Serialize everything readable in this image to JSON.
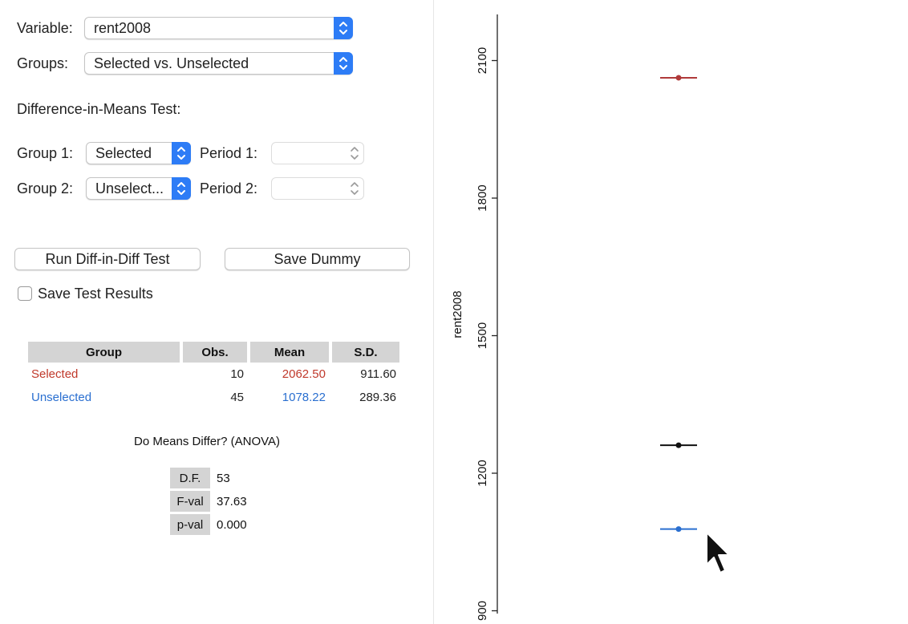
{
  "form": {
    "variable_label": "Variable:",
    "variable_value": "rent2008",
    "groups_label": "Groups:",
    "groups_value": "Selected vs. Unselected",
    "test_heading": "Difference-in-Means Test:",
    "group1_label": "Group 1:",
    "group1_value": "Selected",
    "period1_label": "Period 1:",
    "period1_value": "",
    "group2_label": "Group 2:",
    "group2_value": "Unselect...",
    "period2_label": "Period 2:",
    "period2_value": "",
    "run_button": "Run Diff-in-Diff Test",
    "save_dummy_button": "Save Dummy",
    "save_results_label": "Save Test Results",
    "save_results_checked": false
  },
  "results": {
    "headers": [
      "Group",
      "Obs.",
      "Mean",
      "S.D."
    ],
    "rows": [
      {
        "group": "Selected",
        "obs": "10",
        "mean": "2062.50",
        "sd": "911.60",
        "color": "#c0392b"
      },
      {
        "group": "Unselected",
        "obs": "45",
        "mean": "1078.22",
        "sd": "289.36",
        "color": "#2a6fd0"
      }
    ]
  },
  "anova": {
    "title": "Do Means Differ? (ANOVA)",
    "rows": [
      {
        "label": "D.F.",
        "value": "53"
      },
      {
        "label": "F-val",
        "value": "37.63"
      },
      {
        "label": "p-val",
        "value": "0.000"
      }
    ]
  },
  "chart_data": {
    "type": "scatter",
    "ylabel": "rent2008",
    "yticks": [
      "900",
      "1200",
      "1500",
      "1800",
      "2100"
    ],
    "ylim": [
      900,
      2200
    ],
    "points": [
      {
        "y": 2062.5,
        "color": "#b03a3a"
      },
      {
        "y": 1261,
        "color": "#111111"
      },
      {
        "y": 1078.22,
        "color": "#2a6fd0"
      }
    ]
  },
  "colors": {
    "accent": "#2d7cf6",
    "selected": "#c0392b",
    "unselected": "#2a6fd0"
  }
}
